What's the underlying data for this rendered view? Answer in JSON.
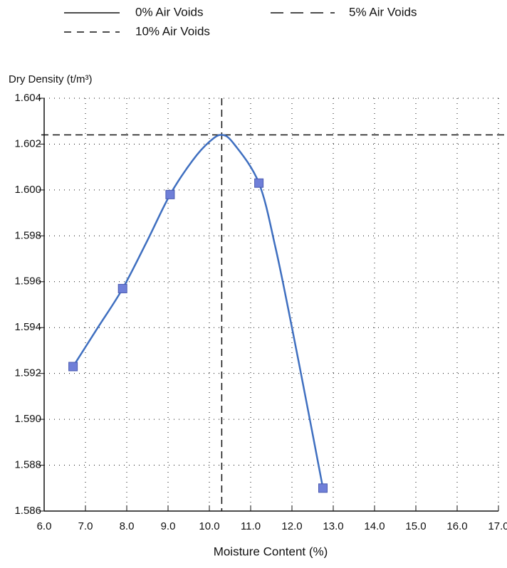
{
  "chart_data": {
    "type": "line",
    "legend": [
      {
        "label": "0% Air Voids",
        "dash": "none"
      },
      {
        "label": "5% Air Voids",
        "dash": "18 10"
      },
      {
        "label": "10% Air Voids",
        "dash": "10 8"
      }
    ],
    "y_label": "Dry Density (t/m³)",
    "x_label": "Moisture Content (%)",
    "xlim": [
      6,
      17
    ],
    "ylim": [
      1.586,
      1.604
    ],
    "xticks": [
      {
        "value": 6,
        "label": "6.0"
      },
      {
        "value": 7,
        "label": "7.0"
      },
      {
        "value": 8,
        "label": "8.0"
      },
      {
        "value": 9,
        "label": "9.0"
      },
      {
        "value": 10,
        "label": "10.0"
      },
      {
        "value": 11,
        "label": "11.0"
      },
      {
        "value": 12,
        "label": "12.0"
      },
      {
        "value": 13,
        "label": "13.0"
      },
      {
        "value": 14,
        "label": "14.0"
      },
      {
        "value": 15,
        "label": "15.0"
      },
      {
        "value": 16,
        "label": "16.0"
      },
      {
        "value": 17,
        "label": "17.0"
      }
    ],
    "yticks": [
      1.586,
      1.588,
      {
        "value": 1.59,
        "label": "1.590"
      },
      1.592,
      1.594,
      1.596,
      1.598,
      {
        "value": 1.6,
        "label": "1.600"
      },
      1.602,
      1.604
    ],
    "grid": true,
    "color": "#3f6fc0",
    "marker_color": "#6f7fd8",
    "points": {
      "x": [
        6.7,
        7.9,
        9.05,
        11.2,
        12.75
      ],
      "y": [
        1.5923,
        1.5957,
        1.5998,
        1.6003,
        1.587
      ]
    },
    "curve": {
      "x": [
        6.7,
        7.3,
        7.9,
        8.5,
        9.05,
        9.6,
        10.0,
        10.3,
        10.6,
        11.2,
        11.6,
        12.0,
        12.4,
        12.75
      ],
      "y": [
        1.5923,
        1.594,
        1.5957,
        1.5978,
        1.5998,
        1.6013,
        1.6021,
        1.6024,
        1.602,
        1.6003,
        1.5975,
        1.594,
        1.5903,
        1.587
      ]
    },
    "optimum": {
      "x": 10.3,
      "y": 1.6024
    }
  }
}
